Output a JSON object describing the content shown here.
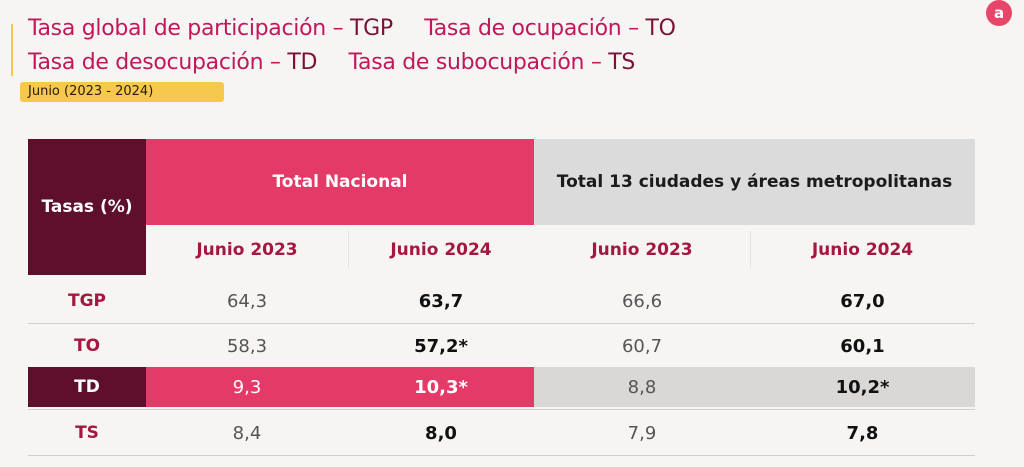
{
  "title": {
    "line1": [
      {
        "label": "Tasa global de participación – ",
        "code": "TGP"
      },
      {
        "label": "Tasa de ocupación – ",
        "code": "TO"
      }
    ],
    "line2": [
      {
        "label": "Tasa de desocupación – ",
        "code": "TD"
      },
      {
        "label": "Tasa de subocupación – ",
        "code": "TS"
      }
    ]
  },
  "date_badge": "Junio (2023 - 2024)",
  "logo": "a",
  "table": {
    "header_rates": "Tasas (%)",
    "header_national": "Total Nacional",
    "header_cities": "Total 13 ciudades y áreas metropolitanas",
    "subheaders": [
      "Junio 2023",
      "Junio 2024",
      "Junio 2023",
      "Junio 2024"
    ],
    "rows": [
      {
        "label": "TGP",
        "values": [
          "64,3",
          "63,7",
          "66,6",
          "67,0"
        ]
      },
      {
        "label": "TO",
        "values": [
          "58,3",
          "57,2*",
          "60,7",
          "60,1"
        ]
      },
      {
        "label": "TD",
        "values": [
          "9,3",
          "10,3*",
          "8,8",
          "10,2*"
        ]
      },
      {
        "label": "TS",
        "values": [
          "8,4",
          "8,0",
          "7,9",
          "7,8"
        ]
      }
    ]
  },
  "colors": {
    "title": "#c2185b",
    "dark_maroon": "#5d0f2b",
    "pink": "#e33a68",
    "gray": "#dcdbdb",
    "badge": "#f6c84d"
  }
}
